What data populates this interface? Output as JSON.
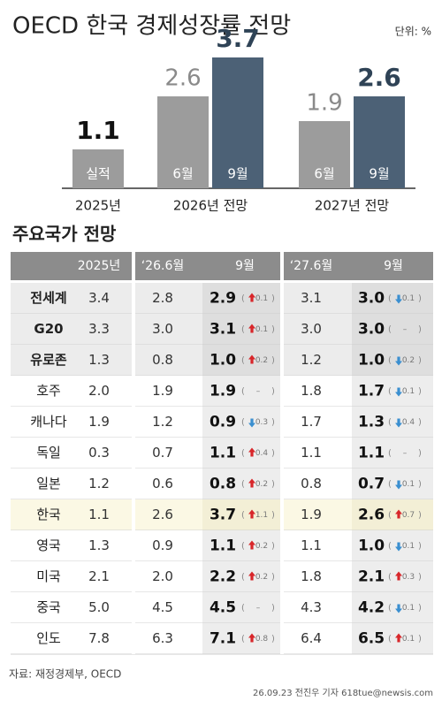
{
  "chart_data": {
    "type": "bar",
    "title": "OECD 한국 경제성장률 전망",
    "unit": "단위: %",
    "groups": [
      {
        "label": "2025년",
        "bars": [
          {
            "label": "실적",
            "value": 1.1,
            "color": "#9c9c9c",
            "emphasis": true
          }
        ]
      },
      {
        "label": "2026년 전망",
        "bars": [
          {
            "label": "6월",
            "value": 2.6,
            "color": "#9c9c9c",
            "emphasis": false
          },
          {
            "label": "9월",
            "value": 3.7,
            "color": "#4c6176",
            "emphasis": true
          }
        ]
      },
      {
        "label": "2027년 전망",
        "bars": [
          {
            "label": "6월",
            "value": 1.9,
            "color": "#9c9c9c",
            "emphasis": false
          },
          {
            "label": "9월",
            "value": 2.6,
            "color": "#4c6176",
            "emphasis": true
          }
        ]
      }
    ]
  },
  "table": {
    "title": "주요국가 전망",
    "header": [
      "2025년",
      "‘26.6월",
      "9월",
      "‘27.6월",
      "9월"
    ],
    "rows": [
      {
        "name": "전세계",
        "style": "group",
        "values": [
          "3.4",
          "2.8",
          "2.9",
          "3.1",
          "3.0"
        ],
        "changes": [
          {
            "dir": "up",
            "text": "0.1"
          },
          {
            "dir": "down",
            "text": "0.1"
          }
        ]
      },
      {
        "name": "G20",
        "style": "group",
        "values": [
          "3.3",
          "3.0",
          "3.1",
          "3.0",
          "3.0"
        ],
        "changes": [
          {
            "dir": "up",
            "text": "0.1"
          },
          {
            "dir": "none",
            "text": "–"
          }
        ]
      },
      {
        "name": "유로존",
        "style": "group",
        "values": [
          "1.3",
          "0.8",
          "1.0",
          "1.2",
          "1.0"
        ],
        "changes": [
          {
            "dir": "up",
            "text": "0.2"
          },
          {
            "dir": "down",
            "text": "0.2"
          }
        ]
      },
      {
        "name": "호주",
        "style": "plain",
        "values": [
          "2.0",
          "1.9",
          "1.9",
          "1.8",
          "1.7"
        ],
        "changes": [
          {
            "dir": "none",
            "text": "–"
          },
          {
            "dir": "down",
            "text": "0.1"
          }
        ]
      },
      {
        "name": "캐나다",
        "style": "plain",
        "values": [
          "1.9",
          "1.2",
          "0.9",
          "1.7",
          "1.3"
        ],
        "changes": [
          {
            "dir": "down",
            "text": "0.3"
          },
          {
            "dir": "down",
            "text": "0.4"
          }
        ]
      },
      {
        "name": "독일",
        "style": "plain",
        "values": [
          "0.3",
          "0.7",
          "1.1",
          "1.1",
          "1.1"
        ],
        "changes": [
          {
            "dir": "up",
            "text": "0.4"
          },
          {
            "dir": "none",
            "text": "–"
          }
        ]
      },
      {
        "name": "일본",
        "style": "plain",
        "values": [
          "1.2",
          "0.6",
          "0.8",
          "0.8",
          "0.7"
        ],
        "changes": [
          {
            "dir": "up",
            "text": "0.2"
          },
          {
            "dir": "down",
            "text": "0.1"
          }
        ]
      },
      {
        "name": "한국",
        "style": "korea",
        "values": [
          "1.1",
          "2.6",
          "3.7",
          "1.9",
          "2.6"
        ],
        "changes": [
          {
            "dir": "up",
            "text": "1.1"
          },
          {
            "dir": "up",
            "text": "0.7"
          }
        ]
      },
      {
        "name": "영국",
        "style": "plain",
        "values": [
          "1.3",
          "0.9",
          "1.1",
          "1.1",
          "1.0"
        ],
        "changes": [
          {
            "dir": "up",
            "text": "0.2"
          },
          {
            "dir": "down",
            "text": "0.1"
          }
        ]
      },
      {
        "name": "미국",
        "style": "plain",
        "values": [
          "2.1",
          "2.0",
          "2.2",
          "1.8",
          "2.1"
        ],
        "changes": [
          {
            "dir": "up",
            "text": "0.2"
          },
          {
            "dir": "up",
            "text": "0.3"
          }
        ]
      },
      {
        "name": "중국",
        "style": "plain",
        "values": [
          "5.0",
          "4.5",
          "4.5",
          "4.3",
          "4.2"
        ],
        "changes": [
          {
            "dir": "none",
            "text": "–"
          },
          {
            "dir": "down",
            "text": "0.1"
          }
        ]
      },
      {
        "name": "인도",
        "style": "plain",
        "values": [
          "7.8",
          "6.3",
          "7.1",
          "6.4",
          "6.5"
        ],
        "changes": [
          {
            "dir": "up",
            "text": "0.8"
          },
          {
            "dir": "up",
            "text": "0.1"
          }
        ]
      }
    ]
  },
  "source": "자료: 재정경제부, OECD",
  "credit": "26.09.23 전진우 기자 618tue@newsis.com"
}
